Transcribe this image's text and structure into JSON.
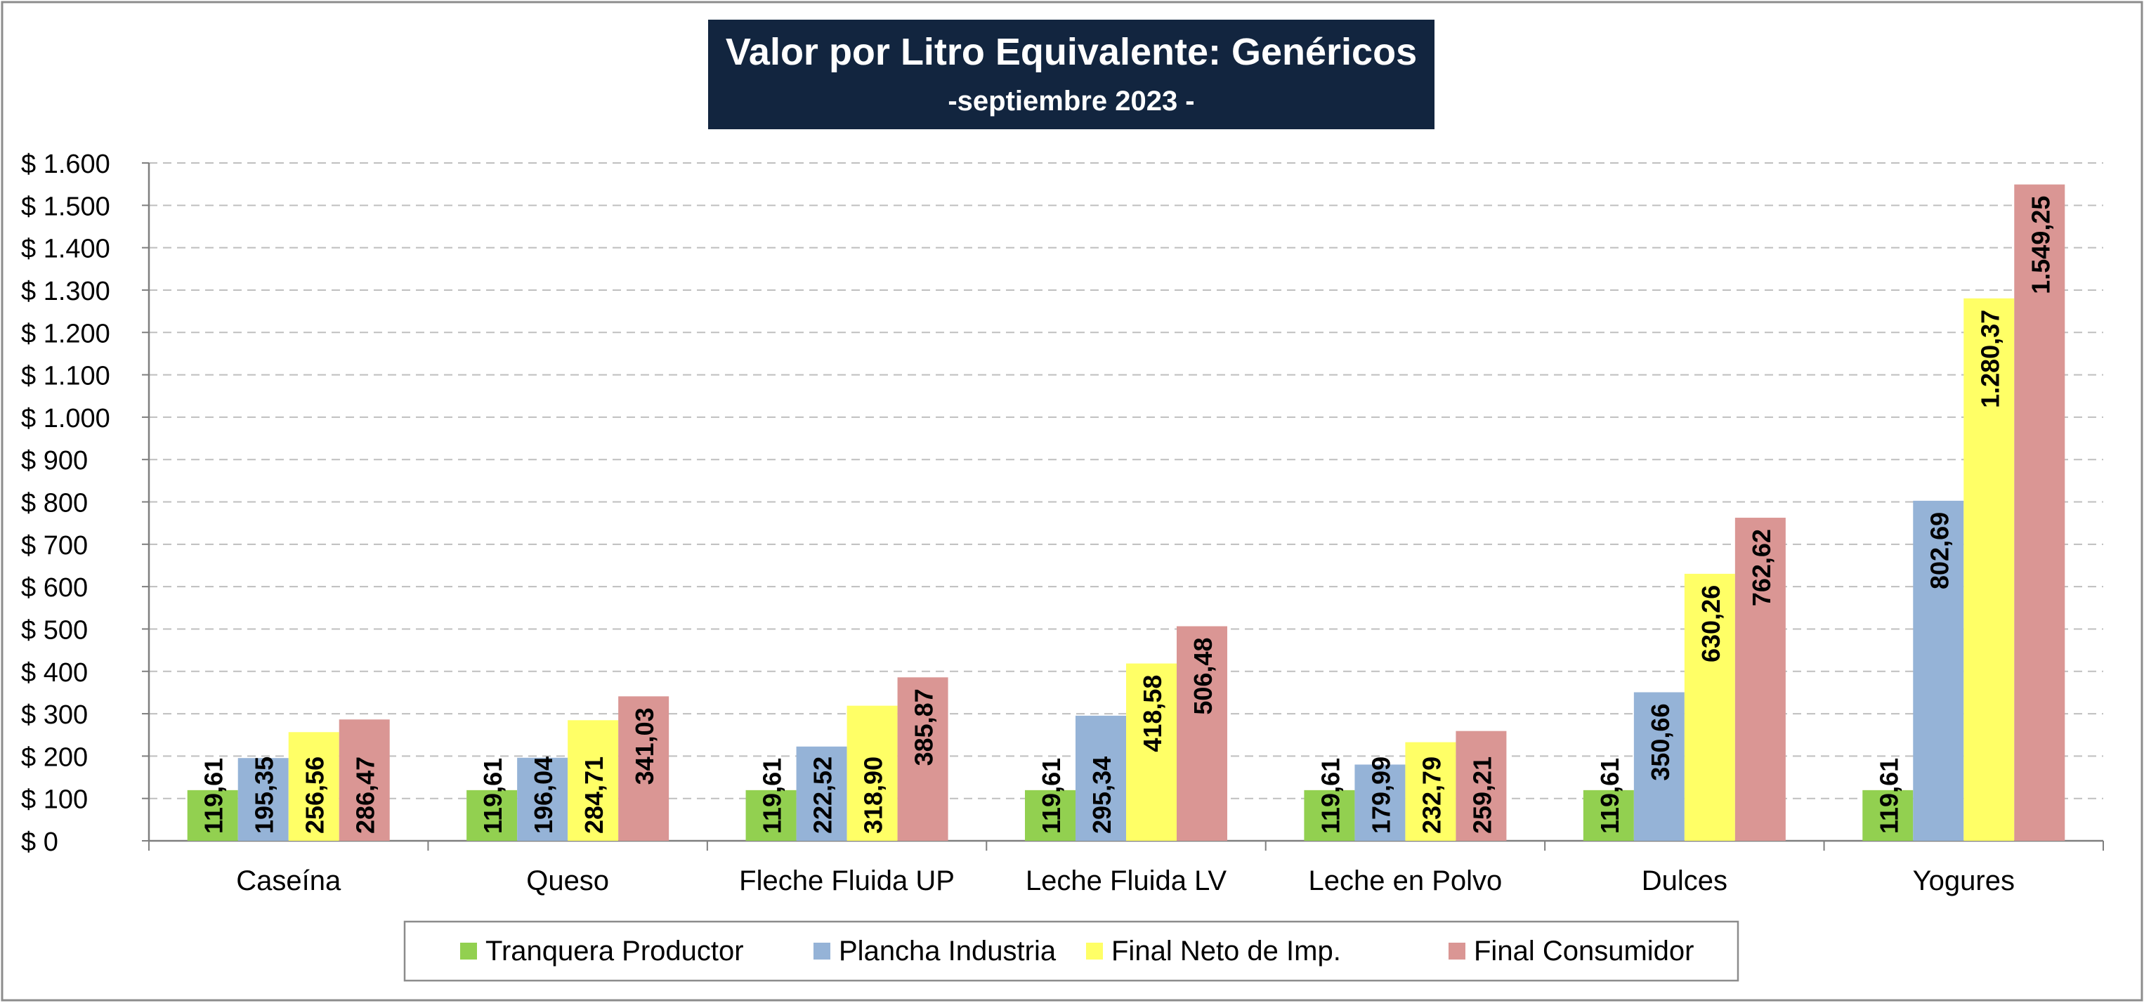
{
  "title": "Valor por Litro Equivalente: Genéricos",
  "subtitle": "-septiembre 2023 -",
  "colors": {
    "title_bg": "#12253F",
    "title_text": "#FFFFFF",
    "frame": "#8C8C8C",
    "grid": "#BFBFBF",
    "axis": "#7F7F7F",
    "text": "#000000"
  },
  "chart_data": {
    "type": "bar",
    "title": "Valor por Litro Equivalente: Genéricos",
    "subtitle": "-septiembre 2023 -",
    "categories": [
      "Caseína",
      "Queso",
      "Fleche Fluida UP",
      "Leche Fluida LV",
      "Leche en Polvo",
      "Dulces",
      "Yogures"
    ],
    "series": [
      {
        "name": "Tranquera Productor",
        "color": "#92D050",
        "values": [
          119.61,
          119.61,
          119.61,
          119.61,
          119.61,
          119.61,
          119.61
        ],
        "labels": [
          "119,61",
          "119,61",
          "119,61",
          "119,61",
          "119,61",
          "119,61",
          "119,61"
        ]
      },
      {
        "name": "Plancha Industria",
        "color": "#95B3D7",
        "values": [
          195.35,
          196.04,
          222.52,
          295.34,
          179.99,
          350.66,
          802.69
        ],
        "labels": [
          "195,35",
          "196,04",
          "222,52",
          "295,34",
          "179,99",
          "350,66",
          "802,69"
        ]
      },
      {
        "name": "Final Neto de Imp.",
        "color": "#FFFF66",
        "values": [
          256.56,
          284.71,
          318.9,
          418.58,
          232.79,
          630.26,
          1280.37
        ],
        "labels": [
          "256,56",
          "284,71",
          "318,90",
          "418,58",
          "232,79",
          "630,26",
          "1.280,37"
        ]
      },
      {
        "name": "Final Consumidor",
        "color": "#DA9694",
        "values": [
          286.47,
          341.03,
          385.87,
          506.48,
          259.21,
          762.62,
          1549.25
        ],
        "labels": [
          "286,47",
          "341,03",
          "385,87",
          "506,48",
          "259,21",
          "762,62",
          "1.549,25"
        ]
      }
    ],
    "ylim": [
      0,
      1600
    ],
    "yticks": [
      0,
      100,
      200,
      300,
      400,
      500,
      600,
      700,
      800,
      900,
      1000,
      1100,
      1200,
      1300,
      1400,
      1500,
      1600
    ],
    "ytick_labels": [
      "$ 0",
      "$ 100",
      "$ 200",
      "$ 300",
      "$ 400",
      "$ 500",
      "$ 600",
      "$ 700",
      "$ 800",
      "$ 900",
      "$ 1.000",
      "$ 1.100",
      "$ 1.200",
      "$ 1.300",
      "$ 1.400",
      "$ 1.500",
      "$ 1.600"
    ],
    "xlabel": "",
    "ylabel": "",
    "grid": true,
    "legend": "bottom"
  }
}
